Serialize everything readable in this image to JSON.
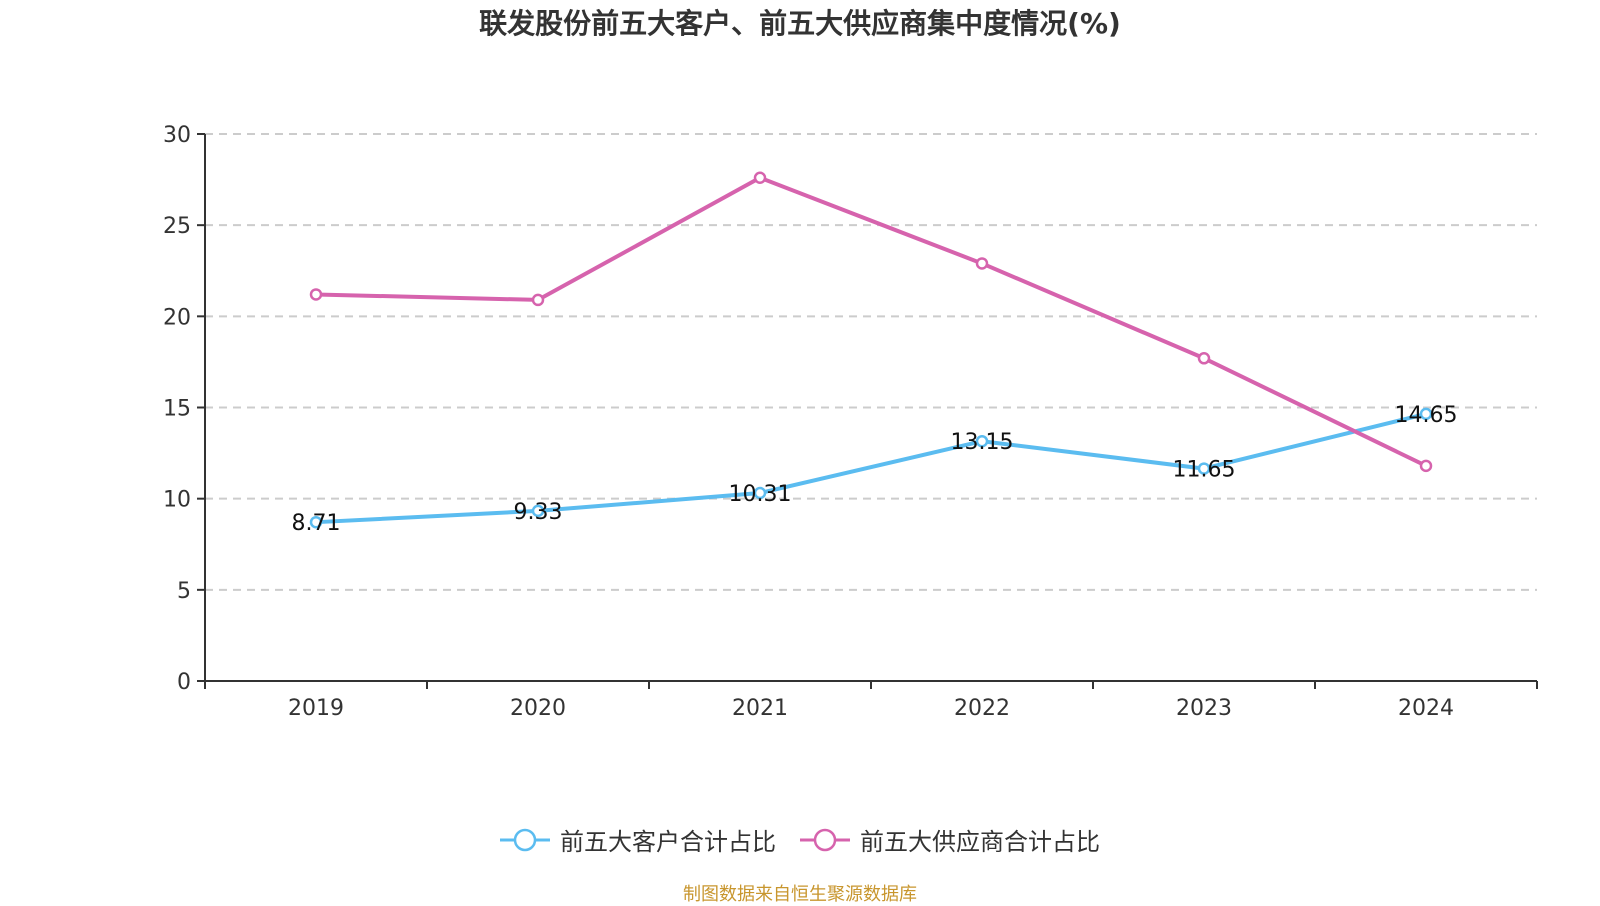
{
  "chart_data": {
    "type": "line",
    "title": "联发股份前五大客户、前五大供应商集中度情况(%)",
    "xlabel": "",
    "ylabel": "",
    "categories": [
      "2019",
      "2020",
      "2021",
      "2022",
      "2023",
      "2024"
    ],
    "ylim": [
      0,
      30
    ],
    "yticks": [
      "0",
      "5",
      "10",
      "15",
      "20",
      "25",
      "30"
    ],
    "grid": true,
    "legend_position": "bottom-center",
    "series": [
      {
        "name": "前五大客户合计占比",
        "color": "#5bbcf0",
        "values": [
          8.71,
          9.33,
          10.31,
          13.15,
          11.65,
          14.65
        ],
        "labels": [
          "8.71",
          "9.33",
          "10.31",
          "13.15",
          "11.65",
          "14.65"
        ],
        "show_labels": true
      },
      {
        "name": "前五大供应商合计占比",
        "color": "#d663ad",
        "values": [
          21.2,
          20.9,
          27.6,
          22.9,
          17.7,
          11.8
        ],
        "show_labels": false
      }
    ]
  },
  "footer": {
    "source": "制图数据来自恒生聚源数据库",
    "source_color": "#c8962e"
  }
}
